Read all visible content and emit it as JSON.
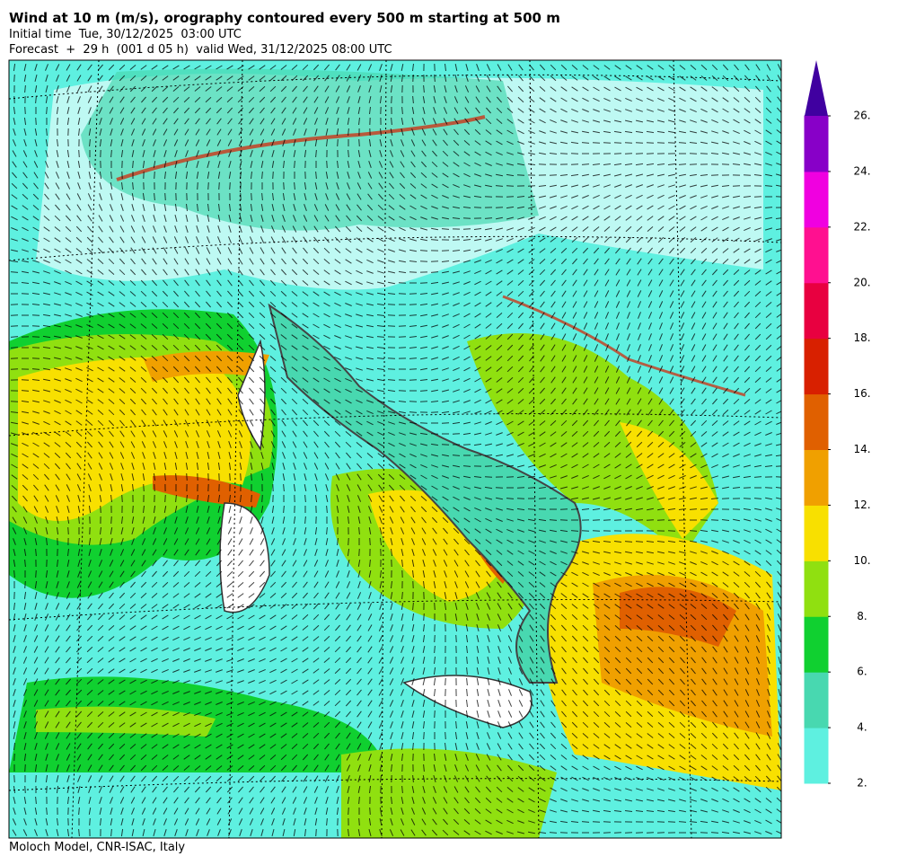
{
  "header": {
    "title": "Wind at 10 m (m/s), orography contoured every 500 m starting at 500 m",
    "initial_time": "Initial time  Tue, 30/12/2025  03:00 UTC",
    "forecast": "Forecast  +  29 h  (001 d 05 h)  valid Wed, 31/12/2025 08:00 UTC"
  },
  "colorbar": {
    "levels": [
      {
        "value": 2,
        "label": "2."
      },
      {
        "value": 4,
        "label": "4."
      },
      {
        "value": 6,
        "label": "6."
      },
      {
        "value": 8,
        "label": "8."
      },
      {
        "value": 10,
        "label": "10."
      },
      {
        "value": 12,
        "label": "12."
      },
      {
        "value": 14,
        "label": "14."
      },
      {
        "value": 16,
        "label": "16."
      },
      {
        "value": 18,
        "label": "18."
      },
      {
        "value": 20,
        "label": "20."
      },
      {
        "value": 22,
        "label": "22."
      },
      {
        "value": 24,
        "label": "24."
      },
      {
        "value": 26,
        "label": "26."
      }
    ],
    "colors": [
      "#5ef0e0",
      "#48d8b0",
      "#10d030",
      "#90e010",
      "#f8e000",
      "#f0a000",
      "#e06000",
      "#d82000",
      "#e80040",
      "#ff1090",
      "#f000e0",
      "#8800c8"
    ],
    "extend_color": "#4000a0"
  },
  "footer": "Moloch Model, CNR-ISAC, Italy"
}
